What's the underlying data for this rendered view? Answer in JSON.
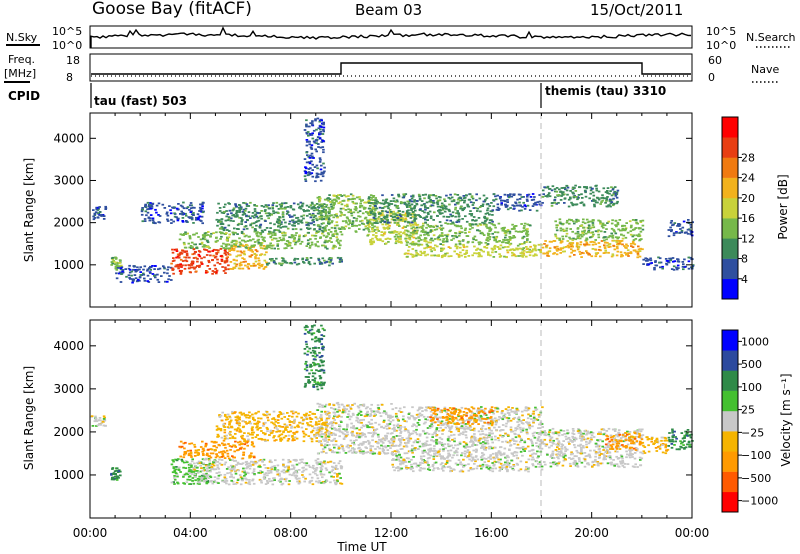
{
  "header": {
    "station": "Goose Bay (fitACF)",
    "beam": "Beam 03",
    "date": "15/Oct/2011"
  },
  "noise_panel": {
    "left_label": "N.Sky",
    "left_ticks": [
      "10^5",
      "10^0"
    ],
    "right_label": "N.Search",
    "right_ticks": [
      "10^5",
      "10^0"
    ]
  },
  "freq_panel": {
    "left_label_line1": "Freq.",
    "left_label_line2": "[MHz]",
    "left_ticks": [
      "18",
      "8"
    ],
    "right_label": "Nave",
    "right_ticks": [
      "60",
      "0"
    ]
  },
  "cpid_panel": {
    "label": "CPID",
    "segments": [
      {
        "name": "tau (fast) 503",
        "start_hour": 0
      },
      {
        "name": "themis (tau) 3310",
        "start_hour": 18
      }
    ]
  },
  "colors": {
    "power": [
      "#0000ff",
      "#2f4f9f",
      "#3c8a5a",
      "#76b84a",
      "#c8d23a",
      "#f2b21c",
      "#f07a10",
      "#e83e12",
      "#ff0000"
    ],
    "velocity": [
      "#ff0000",
      "#ff5a00",
      "#ff9a00",
      "#f5b400",
      "#c8c8c8",
      "#44c030",
      "#2f8a48",
      "#2c4a9e",
      "#0000ff"
    ]
  },
  "chart_data": [
    {
      "type": "heatmap",
      "name": "power-panel",
      "ylabel": "Slant Range [km]",
      "yticks": [
        "1000",
        "2000",
        "3000",
        "4000"
      ],
      "ylim": [
        0,
        4600
      ],
      "colorbar_label": "Power [dB]",
      "colorbar_ticks": [
        "4",
        "8",
        "12",
        "16",
        "20",
        "24",
        "28"
      ],
      "echo_bands": [
        {
          "x0": 0.0,
          "x1": 0.6,
          "y0": 2100,
          "y1": 2400,
          "level": 1
        },
        {
          "x0": 0.8,
          "x1": 1.2,
          "y0": 900,
          "y1": 1200,
          "level": 3
        },
        {
          "x0": 1.0,
          "x1": 3.2,
          "y0": 600,
          "y1": 1000,
          "level": 1
        },
        {
          "x0": 2.0,
          "x1": 4.5,
          "y0": 2000,
          "y1": 2500,
          "level": 1
        },
        {
          "x0": 3.2,
          "x1": 5.5,
          "y0": 800,
          "y1": 1400,
          "level": 7
        },
        {
          "x0": 5.5,
          "x1": 7.0,
          "y0": 900,
          "y1": 1500,
          "level": 5
        },
        {
          "x0": 3.5,
          "x1": 10.0,
          "y0": 1400,
          "y1": 1800,
          "level": 3
        },
        {
          "x0": 7.0,
          "x1": 10.0,
          "y0": 1000,
          "y1": 1200,
          "level": 2
        },
        {
          "x0": 5.0,
          "x1": 9.5,
          "y0": 1800,
          "y1": 2500,
          "level": 2
        },
        {
          "x0": 8.5,
          "x1": 9.3,
          "y0": 3000,
          "y1": 4500,
          "level": 1
        },
        {
          "x0": 9.0,
          "x1": 11.5,
          "y0": 1800,
          "y1": 2700,
          "level": 3
        },
        {
          "x0": 11.0,
          "x1": 13.0,
          "y0": 1500,
          "y1": 2300,
          "level": 4
        },
        {
          "x0": 12.5,
          "x1": 18.0,
          "y0": 1200,
          "y1": 1500,
          "level": 4
        },
        {
          "x0": 12.5,
          "x1": 17.5,
          "y0": 1500,
          "y1": 2000,
          "level": 3
        },
        {
          "x0": 11.0,
          "x1": 16.0,
          "y0": 2000,
          "y1": 2700,
          "level": 2
        },
        {
          "x0": 16.0,
          "x1": 18.0,
          "y0": 2300,
          "y1": 2700,
          "level": 1
        },
        {
          "x0": 18.0,
          "x1": 22.0,
          "y0": 1200,
          "y1": 1600,
          "level": 5
        },
        {
          "x0": 18.5,
          "x1": 22.0,
          "y0": 1600,
          "y1": 2100,
          "level": 3
        },
        {
          "x0": 18.0,
          "x1": 21.0,
          "y0": 2400,
          "y1": 2900,
          "level": 2
        },
        {
          "x0": 22.0,
          "x1": 24.0,
          "y0": 900,
          "y1": 1200,
          "level": 1
        },
        {
          "x0": 23.0,
          "x1": 24.0,
          "y0": 1700,
          "y1": 2100,
          "level": 1
        }
      ]
    },
    {
      "type": "heatmap",
      "name": "velocity-panel",
      "ylabel": "Slant Range [km]",
      "yticks": [
        "1000",
        "2000",
        "3000",
        "4000"
      ],
      "ylim": [
        0,
        4600
      ],
      "colorbar_label": "Velocity [m s⁻¹]",
      "colorbar_ticks": [
        "1000",
        "500",
        "100",
        "25",
        "−25",
        "−100",
        "−500",
        "−1000"
      ],
      "xlabel": "Time UT",
      "xticks": [
        "00:00",
        "04:00",
        "08:00",
        "12:00",
        "16:00",
        "20:00",
        "00:00"
      ],
      "xlim": [
        0,
        24
      ],
      "echo_bands": [
        {
          "x0": 0.0,
          "x1": 0.6,
          "y0": 2100,
          "y1": 2400,
          "level": 4
        },
        {
          "x0": 0.8,
          "x1": 1.2,
          "y0": 900,
          "y1": 1200,
          "level": 6
        },
        {
          "x0": 3.2,
          "x1": 4.8,
          "y0": 800,
          "y1": 1400,
          "level": 5
        },
        {
          "x0": 4.0,
          "x1": 10.0,
          "y0": 800,
          "y1": 1400,
          "level": 4
        },
        {
          "x0": 3.5,
          "x1": 6.5,
          "y0": 1400,
          "y1": 1800,
          "level": 2
        },
        {
          "x0": 5.0,
          "x1": 9.5,
          "y0": 1800,
          "y1": 2500,
          "level": 3
        },
        {
          "x0": 8.5,
          "x1": 9.3,
          "y0": 3000,
          "y1": 4500,
          "level": 6
        },
        {
          "x0": 9.0,
          "x1": 12.0,
          "y0": 1500,
          "y1": 2700,
          "level": 4
        },
        {
          "x0": 12.0,
          "x1": 18.0,
          "y0": 1100,
          "y1": 2600,
          "level": 4
        },
        {
          "x0": 13.5,
          "x1": 16.0,
          "y0": 2200,
          "y1": 2600,
          "level": 2
        },
        {
          "x0": 18.0,
          "x1": 22.0,
          "y0": 1200,
          "y1": 2100,
          "level": 4
        },
        {
          "x0": 20.5,
          "x1": 22.0,
          "y0": 1600,
          "y1": 2000,
          "level": 2
        },
        {
          "x0": 22.0,
          "x1": 23.0,
          "y0": 1500,
          "y1": 1900,
          "level": 3
        },
        {
          "x0": 23.0,
          "x1": 24.0,
          "y0": 1600,
          "y1": 2100,
          "level": 6
        }
      ]
    }
  ]
}
